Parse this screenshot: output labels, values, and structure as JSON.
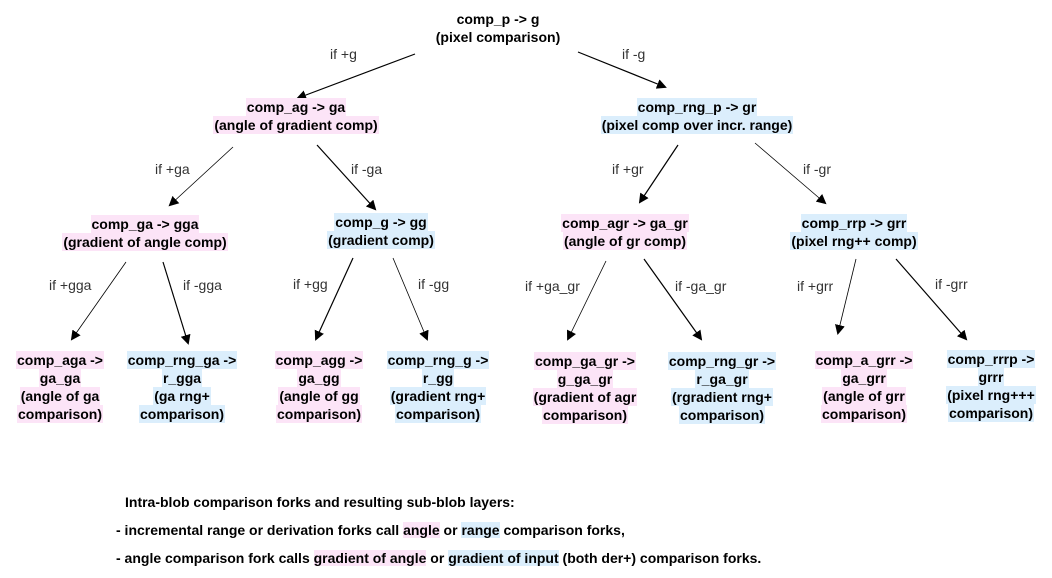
{
  "nodes": {
    "root": [
      "comp_p -> g",
      "(pixel comparison)"
    ],
    "ag": [
      "comp_ag -> ga",
      "(angle of gradient comp)"
    ],
    "rng_p": [
      "comp_rng_p -> gr",
      "(pixel comp over incr. range)"
    ],
    "ga": [
      "comp_ga -> gga",
      "(gradient of angle comp)"
    ],
    "g": [
      "comp_g -> gg",
      "(gradient comp)"
    ],
    "agr": [
      "comp_agr -> ga_gr",
      "(angle of gr comp)"
    ],
    "rrp": [
      "comp_rrp -> grr",
      "(pixel rng++ comp)"
    ],
    "aga": [
      "comp_aga ->",
      "ga_ga",
      "(angle of ga",
      "comparison)"
    ],
    "rng_ga": [
      "comp_rng_ga ->",
      "r_gga",
      "(ga rng+",
      "comparison)"
    ],
    "agg": [
      "comp_agg ->",
      "ga_gg",
      "(angle of gg",
      "comparison)"
    ],
    "rng_g": [
      "comp_rng_g ->",
      "r_gg",
      "(gradient rng+",
      "comparison)"
    ],
    "ga_gr": [
      "comp_ga_gr ->",
      "g_ga_gr",
      "(gradient of agr",
      "comparison)"
    ],
    "rng_gr": [
      "comp_rng_gr ->",
      "r_ga_gr",
      "(rgradient rng+",
      "comparison)"
    ],
    "a_grr": [
      "comp_a_grr ->",
      "ga_grr",
      "(angle of grr",
      "comparison)"
    ],
    "rrrp": [
      "comp_rrrp ->",
      "grrr",
      "(pixel rng+++",
      "comparison)"
    ]
  },
  "edge_labels": {
    "if_pos_g": "if +g",
    "if_neg_g": "if -g",
    "if_pos_ga": "if +ga",
    "if_neg_ga": "if -ga",
    "if_pos_gr": "if +gr",
    "if_neg_gr": "if -gr",
    "if_pos_gga": "if +gga",
    "if_neg_gga": "if -gga",
    "if_pos_gg": "if +gg",
    "if_neg_gg": "if -gg",
    "if_pos_ga_gr": "if +ga_gr",
    "if_neg_ga_gr": "if -ga_gr",
    "if_pos_grr": "if +grr",
    "if_neg_grr": "if -grr"
  },
  "caption": {
    "title": "Intra-blob comparison forks and resulting sub-blob layers:",
    "line1_a": "- incremental range or derivation forks call ",
    "line1_angle": "angle",
    "line1_b": " or ",
    "line1_range": "range",
    "line1_c": " comparison forks,",
    "line2_a": "- angle comparison fork calls ",
    "line2_goa": "gradient of angle",
    "line2_b": " or ",
    "line2_goi": "gradient of input",
    "line2_c": " (both der+) comparison forks."
  },
  "colors": {
    "angle_highlight": "#fce4f7",
    "range_highlight": "#dbeefc"
  }
}
